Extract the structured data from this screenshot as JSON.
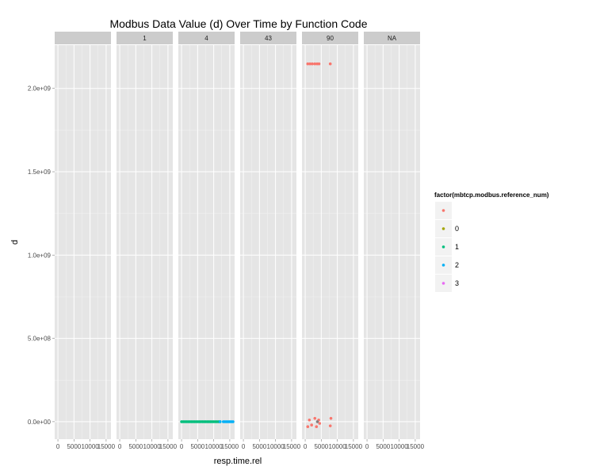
{
  "chart_data": {
    "type": "scatter",
    "title": "Modbus Data Value (d) Over Time by Function Code",
    "xlabel": "resp.time.rel",
    "ylabel": "d",
    "xlim": [
      -1000,
      16500
    ],
    "ylim": [
      -105000000.0,
      2260000000.0
    ],
    "x_ticks": [
      0,
      5000,
      10000,
      15000
    ],
    "x_tick_labels": [
      "0",
      "5000",
      "10000",
      "15000"
    ],
    "y_ticks": [
      0,
      500000000,
      1000000000,
      1500000000,
      2000000000
    ],
    "y_tick_labels": [
      "0.0e+00",
      "5.0e+08",
      "1.0e+09",
      "1.5e+09",
      "2.0e+09"
    ],
    "grid": true,
    "facets": [
      "",
      "1",
      "4",
      "43",
      "90",
      "NA"
    ],
    "legend": {
      "title": "factor(mbtcp.modbus.reference_num)",
      "placement": "right",
      "entries": [
        {
          "label": "",
          "color": "#F8766D"
        },
        {
          "label": "0",
          "color": "#A3A500"
        },
        {
          "label": "1",
          "color": "#00BF7D"
        },
        {
          "label": "2",
          "color": "#00B0F6"
        },
        {
          "label": "3",
          "color": "#E76BF3"
        }
      ]
    },
    "colors": {
      "panel_bg": "#E5E5E5",
      "strip_bg": "#CCCCCC",
      "grid_major": "#FFFFFF",
      "grid_minor": "#F2F2F2"
    },
    "series": [
      {
        "facet": "4",
        "name": "1",
        "color": "#00BF7D",
        "points": [
          [
            0,
            0
          ],
          [
            500,
            0
          ],
          [
            1000,
            0
          ],
          [
            1500,
            0
          ],
          [
            2000,
            0
          ],
          [
            2500,
            0
          ],
          [
            3000,
            0
          ],
          [
            3500,
            0
          ],
          [
            4000,
            0
          ],
          [
            4500,
            0
          ],
          [
            5000,
            0
          ],
          [
            5500,
            0
          ],
          [
            6000,
            0
          ],
          [
            6500,
            0
          ],
          [
            7000,
            0
          ],
          [
            7500,
            0
          ],
          [
            8000,
            0
          ],
          [
            8500,
            0
          ],
          [
            9000,
            0
          ],
          [
            9500,
            0
          ],
          [
            10000,
            0
          ],
          [
            10500,
            0
          ],
          [
            11000,
            0
          ],
          [
            11500,
            0
          ],
          [
            12000,
            0
          ]
        ]
      },
      {
        "facet": "4",
        "name": "2",
        "color": "#00B0F6",
        "points": [
          [
            12000,
            0
          ],
          [
            13000,
            0
          ],
          [
            13500,
            0
          ],
          [
            14000,
            0
          ],
          [
            14500,
            0
          ],
          [
            15000,
            0
          ],
          [
            15500,
            0
          ],
          [
            16000,
            0
          ]
        ]
      },
      {
        "facet": "90",
        "name": "",
        "color": "#F8766D",
        "points": [
          [
            800,
            2147480000
          ],
          [
            1500,
            2147480000
          ],
          [
            2200,
            2147480000
          ],
          [
            3000,
            2147480000
          ],
          [
            3700,
            2147480000
          ],
          [
            4300,
            2147480000
          ],
          [
            7800,
            2147480000
          ],
          [
            800,
            -30000000
          ],
          [
            1300,
            10000000
          ],
          [
            2000,
            -20000000
          ],
          [
            3000,
            20000000
          ],
          [
            3500,
            -30000000
          ],
          [
            4200,
            10000000
          ],
          [
            4500,
            -10000000
          ],
          [
            7800,
            -25000000
          ],
          [
            8000,
            20000000
          ]
        ]
      },
      {
        "facet": "90",
        "name": "",
        "color": "#7F7F7F",
        "points": [
          [
            3800,
            0
          ]
        ]
      }
    ]
  }
}
